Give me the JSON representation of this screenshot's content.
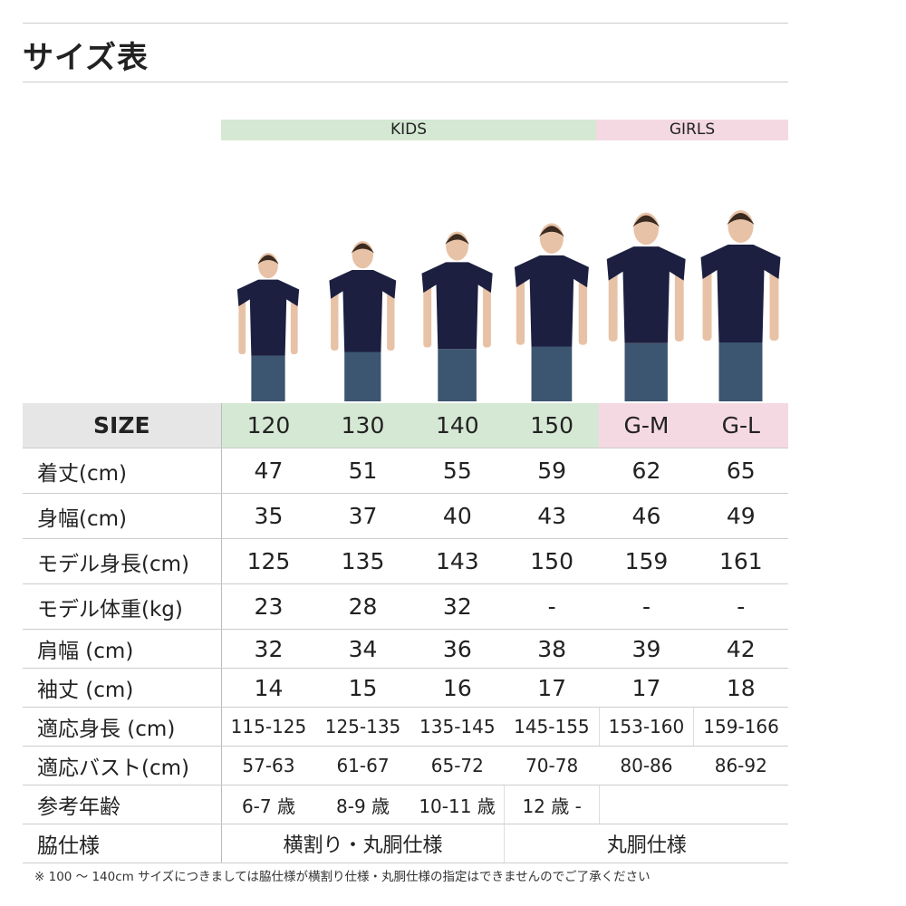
{
  "title": "サイズ表",
  "groups": {
    "kids": "KIDS",
    "girls": "GIRLS"
  },
  "colors": {
    "kids": "#d5e8d4",
    "girls": "#f5d9e2",
    "shirt": "#1c1f3f",
    "jeans": "#3c5570"
  },
  "table": {
    "size_label": "SIZE",
    "sizes": [
      "120",
      "130",
      "140",
      "150",
      "G-M",
      "G-L"
    ],
    "rows": [
      {
        "label": "着丈(cm)",
        "values": [
          "47",
          "51",
          "55",
          "59",
          "62",
          "65"
        ]
      },
      {
        "label": "身幅(cm)",
        "values": [
          "35",
          "37",
          "40",
          "43",
          "46",
          "49"
        ]
      },
      {
        "label": "モデル身長(cm)",
        "values": [
          "125",
          "135",
          "143",
          "150",
          "159",
          "161"
        ]
      },
      {
        "label": "モデル体重(kg)",
        "values": [
          "23",
          "28",
          "32",
          "-",
          "-",
          "-"
        ]
      },
      {
        "label": "肩幅 (cm)",
        "values": [
          "32",
          "34",
          "36",
          "38",
          "39",
          "42"
        ]
      },
      {
        "label": "袖丈 (cm)",
        "values": [
          "14",
          "15",
          "16",
          "17",
          "17",
          "18"
        ]
      },
      {
        "label": "適応身長 (cm)",
        "values": [
          "115-125",
          "125-135",
          "135-145",
          "145-155",
          "153-160",
          "159-166"
        ]
      },
      {
        "label": "適応バスト(cm)",
        "values": [
          "57-63",
          "61-67",
          "65-72",
          "70-78",
          "80-86",
          "86-92"
        ]
      },
      {
        "label": "参考年齢",
        "values": [
          "6-7 歳",
          "8-9 歳",
          "10-11 歳",
          "12 歳 -",
          ""
        ]
      },
      {
        "label": "脇仕様",
        "values": [
          "横割り・丸胴仕様",
          "丸胴仕様"
        ]
      }
    ]
  },
  "note": "※ 100 〜 140cm サイズにつきましては脇仕様が横割り仕様・丸胴仕様の指定はできませんのでご了承ください"
}
